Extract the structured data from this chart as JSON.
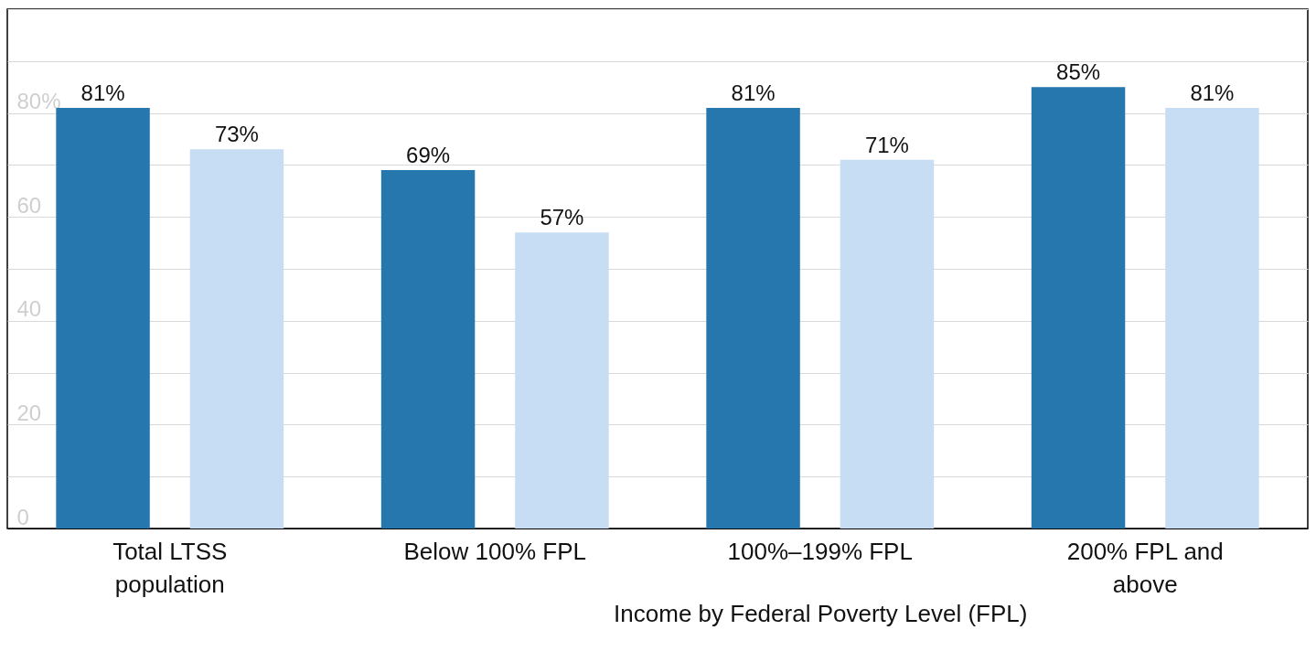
{
  "chart_data": {
    "type": "bar",
    "xlabel": "Income by Federal Poverty Level (FPL)",
    "categories": [
      "Total LTSS population",
      "Below 100% FPL",
      "100%–199% FPL",
      "200% FPL and above"
    ],
    "series": [
      {
        "color": "#2577ae",
        "values": [
          81,
          69,
          81,
          85
        ],
        "value_labels": [
          "81%",
          "69%",
          "81%",
          "85%"
        ]
      },
      {
        "color": "#c6ddf3",
        "values": [
          73,
          57,
          71,
          81
        ],
        "value_labels": [
          "73%",
          "57%",
          "71%",
          "81%"
        ]
      }
    ],
    "ylim": [
      0,
      100
    ],
    "yticks": [
      0,
      {
        "value": 10,
        "label": null
      },
      20,
      {
        "value": 30,
        "label": null
      },
      40,
      {
        "value": 50,
        "label": null
      },
      60,
      {
        "value": 70,
        "label": null
      },
      {
        "value": 80,
        "label": "80%"
      },
      {
        "value": 90,
        "label": null
      },
      {
        "value": 100,
        "label": null
      }
    ],
    "grid": true
  }
}
